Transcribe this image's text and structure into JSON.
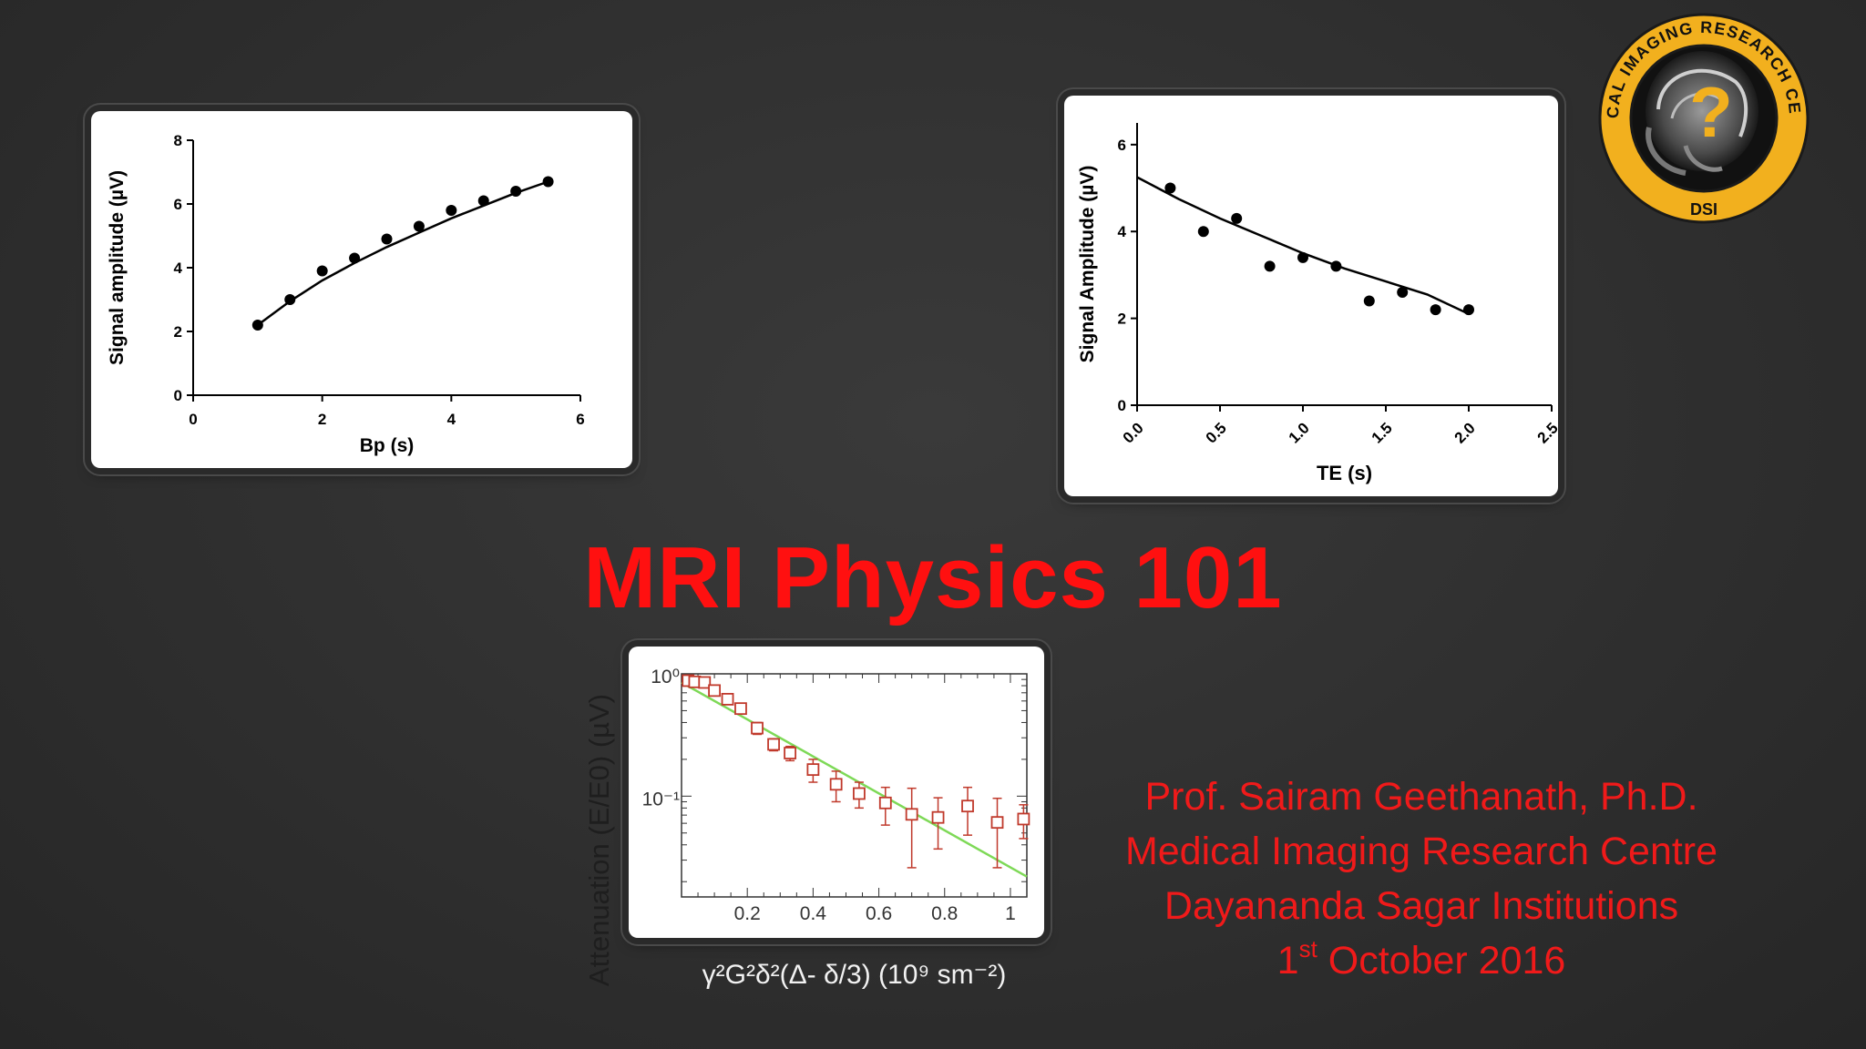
{
  "slide": {
    "title": "MRI Physics 101",
    "presenter": "Prof. Sairam Geethanath, Ph.D.",
    "centre": "Medical Imaging Research Centre",
    "institution": "Dayananda Sagar Institutions",
    "date_day": "1",
    "date_suffix": "st",
    "date_rest": " October 2016"
  },
  "logo": {
    "ring_text": "MEDICAL IMAGING RESEARCH CENTER",
    "bottom_text": "DSI",
    "mark": "?",
    "ring_color": "#f2b01e",
    "icon": "brain-mri-icon"
  },
  "chart_data": [
    {
      "type": "scatter",
      "xlabel": "Bp (s)",
      "ylabel": "Signal amplitude (µV)",
      "xlim": [
        0,
        6
      ],
      "ylim": [
        0,
        8
      ],
      "xticks": [
        "0",
        "2",
        "4",
        "6"
      ],
      "yticks": [
        "0",
        "2",
        "4",
        "6",
        "8"
      ],
      "points": [
        [
          1.0,
          2.2
        ],
        [
          1.5,
          3.0
        ],
        [
          2.0,
          3.9
        ],
        [
          2.5,
          4.3
        ],
        [
          3.0,
          4.9
        ],
        [
          3.5,
          5.3
        ],
        [
          4.0,
          5.8
        ],
        [
          4.5,
          6.1
        ],
        [
          5.0,
          6.4
        ],
        [
          5.5,
          6.7
        ]
      ],
      "fit": [
        [
          1.0,
          2.2
        ],
        [
          1.5,
          2.95
        ],
        [
          2.0,
          3.6
        ],
        [
          2.5,
          4.15
        ],
        [
          3.0,
          4.65
        ],
        [
          3.5,
          5.1
        ],
        [
          4.0,
          5.55
        ],
        [
          4.5,
          5.95
        ],
        [
          5.0,
          6.35
        ],
        [
          5.5,
          6.7
        ]
      ]
    },
    {
      "type": "scatter",
      "xlabel": "TE (s)",
      "ylabel": "Signal Amplitude (µV)",
      "xlim": [
        0,
        2.5
      ],
      "ylim": [
        0,
        6.5
      ],
      "xticks": [
        "0.0",
        "0.5",
        "1.0",
        "1.5",
        "2.0",
        "2.5"
      ],
      "yticks": [
        "0",
        "2",
        "4",
        "6"
      ],
      "points": [
        [
          0.2,
          5.0
        ],
        [
          0.4,
          4.0
        ],
        [
          0.6,
          4.3
        ],
        [
          0.8,
          3.2
        ],
        [
          1.0,
          3.4
        ],
        [
          1.2,
          3.2
        ],
        [
          1.4,
          2.4
        ],
        [
          1.6,
          2.6
        ],
        [
          1.8,
          2.2
        ],
        [
          2.0,
          2.2
        ]
      ],
      "fit": [
        [
          0.0,
          5.25
        ],
        [
          0.25,
          4.75
        ],
        [
          0.5,
          4.3
        ],
        [
          0.75,
          3.9
        ],
        [
          1.0,
          3.5
        ],
        [
          1.25,
          3.15
        ],
        [
          1.5,
          2.85
        ],
        [
          1.75,
          2.55
        ],
        [
          2.0,
          2.1
        ]
      ]
    },
    {
      "type": "scatter",
      "xlabel": "γ²G²δ²(Δ- δ/3) (10⁹ sm⁻²)",
      "ylabel": "Attenuation (E/E0) (µV)",
      "yscale": "log",
      "xlim": [
        0,
        1.05
      ],
      "ylim": [
        0.015,
        1.0
      ],
      "xticks": [
        "0.2",
        "0.4",
        "0.6",
        "0.8",
        "1"
      ],
      "yticks": [
        "10⁰",
        "10⁻¹"
      ],
      "series_color": "#c0392b",
      "fit_color": "#7ed957",
      "points": [
        {
          "x": 0.02,
          "y": 0.88,
          "err": 0.06
        },
        {
          "x": 0.04,
          "y": 0.86,
          "err": 0.07
        },
        {
          "x": 0.07,
          "y": 0.85,
          "err": 0.06
        },
        {
          "x": 0.1,
          "y": 0.73,
          "err": 0.06
        },
        {
          "x": 0.14,
          "y": 0.62,
          "err": 0.05
        },
        {
          "x": 0.18,
          "y": 0.52,
          "err": 0.05
        },
        {
          "x": 0.23,
          "y": 0.36,
          "err": 0.04
        },
        {
          "x": 0.28,
          "y": 0.265,
          "err": 0.03
        },
        {
          "x": 0.33,
          "y": 0.225,
          "err": 0.03
        },
        {
          "x": 0.4,
          "y": 0.165,
          "err": 0.035
        },
        {
          "x": 0.47,
          "y": 0.125,
          "err": 0.035
        },
        {
          "x": 0.54,
          "y": 0.105,
          "err": 0.025
        },
        {
          "x": 0.62,
          "y": 0.088,
          "err": 0.03
        },
        {
          "x": 0.7,
          "y": 0.071,
          "err": 0.045
        },
        {
          "x": 0.78,
          "y": 0.067,
          "err": 0.03
        },
        {
          "x": 0.87,
          "y": 0.083,
          "err": 0.035
        },
        {
          "x": 0.96,
          "y": 0.061,
          "err": 0.035
        },
        {
          "x": 1.04,
          "y": 0.065,
          "err": 0.02
        }
      ],
      "fit": [
        [
          0.0,
          0.85
        ],
        [
          1.05,
          0.022
        ]
      ]
    }
  ]
}
